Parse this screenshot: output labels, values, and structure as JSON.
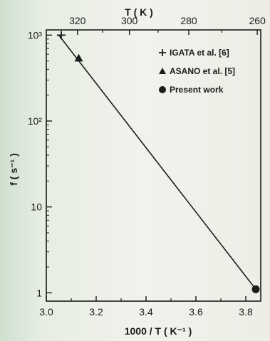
{
  "chart_data": {
    "type": "scatter",
    "title": "",
    "xlabel": "1000 / T ( K⁻¹ )",
    "x2label": "T ( K )",
    "ylabel": "f ( s⁻¹ )",
    "xlim": [
      3.0,
      3.86
    ],
    "ylim": [
      0.8,
      1150
    ],
    "yscale": "log",
    "x_ticks": [
      3.0,
      3.2,
      3.4,
      3.6,
      3.8
    ],
    "x_tick_labels": [
      "3.0",
      "3.2",
      "3.4",
      "3.6",
      "3.8"
    ],
    "y_ticks": [
      1,
      10,
      100,
      1000
    ],
    "y_tick_labels": [
      "1",
      "10",
      "10²",
      "10³"
    ],
    "x2_ticks": [
      320,
      300,
      280,
      260
    ],
    "x2_tick_labels": [
      "320",
      "300",
      "280",
      "260"
    ],
    "fit_line": {
      "x": [
        3.05,
        3.84
      ],
      "y": [
        1000,
        1.1
      ]
    },
    "series": [
      {
        "name": "IGATA et al. [6]",
        "marker": "plus",
        "x": [
          3.06
        ],
        "y": [
          1000
        ]
      },
      {
        "name": "ASANO et al. [5]",
        "marker": "triangle",
        "x": [
          3.13
        ],
        "y": [
          540
        ]
      },
      {
        "name": "Present work",
        "marker": "circle",
        "x": [
          3.84
        ],
        "y": [
          1.1
        ]
      }
    ],
    "legend_placement": "top-right",
    "grid": false
  }
}
